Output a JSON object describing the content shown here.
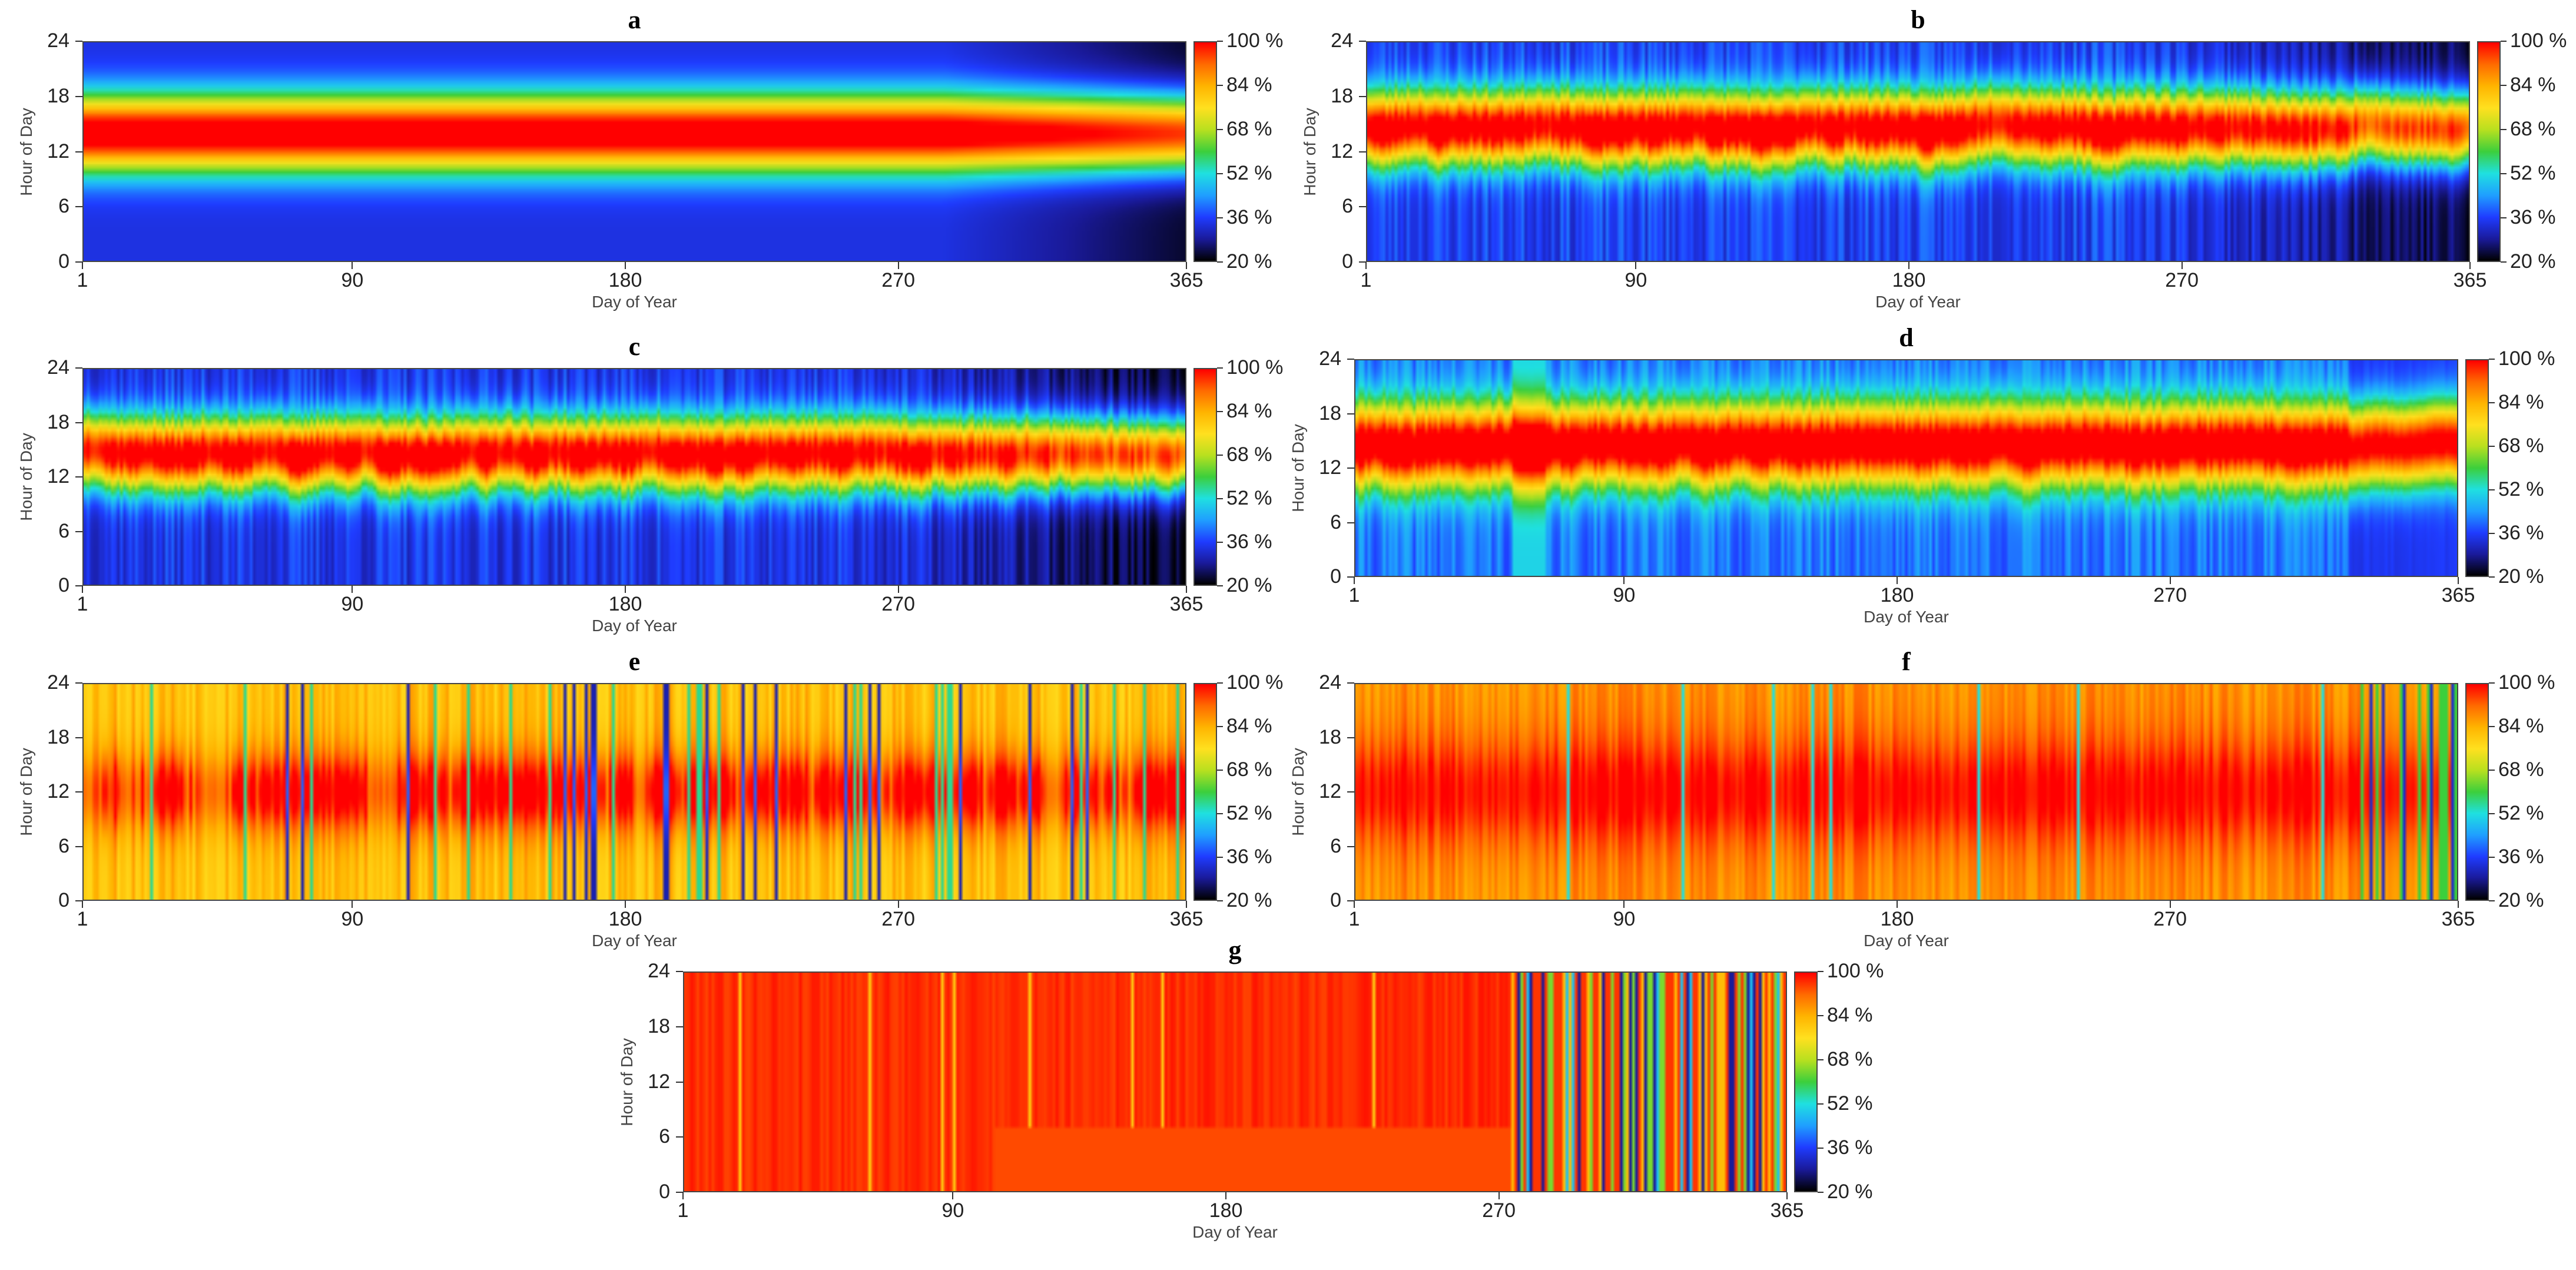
{
  "chart_data": {
    "type": "heatmap",
    "panels": [
      {
        "letter": "a",
        "profile": "a",
        "seed": 11
      },
      {
        "letter": "b",
        "profile": "b",
        "seed": 23
      },
      {
        "letter": "c",
        "profile": "c",
        "seed": 37
      },
      {
        "letter": "d",
        "profile": "d",
        "seed": 41
      },
      {
        "letter": "e",
        "profile": "e",
        "seed": 53
      },
      {
        "letter": "f",
        "profile": "f",
        "seed": 67
      },
      {
        "letter": "g",
        "profile": "g",
        "seed": 79
      }
    ],
    "xlabel": "Day of Year",
    "ylabel": "Hour of Day",
    "x_ticks": [
      1,
      90,
      180,
      270,
      365
    ],
    "y_ticks": [
      0,
      6,
      12,
      18,
      24
    ],
    "xlim": [
      1,
      365
    ],
    "ylim": [
      0,
      24
    ],
    "colorbar": {
      "ticks": [
        "100 %",
        "84 %",
        "68 %",
        "52 %",
        "36 %",
        "20 %"
      ],
      "range": [
        20,
        100
      ]
    },
    "colormap": [
      "#000000",
      "#1a1a9a",
      "#1f3cff",
      "#1f9fff",
      "#1fe0e0",
      "#3ccf3c",
      "#b8e01f",
      "#ffe01f",
      "#ffb400",
      "#ff6a00",
      "#ff0000"
    ]
  }
}
